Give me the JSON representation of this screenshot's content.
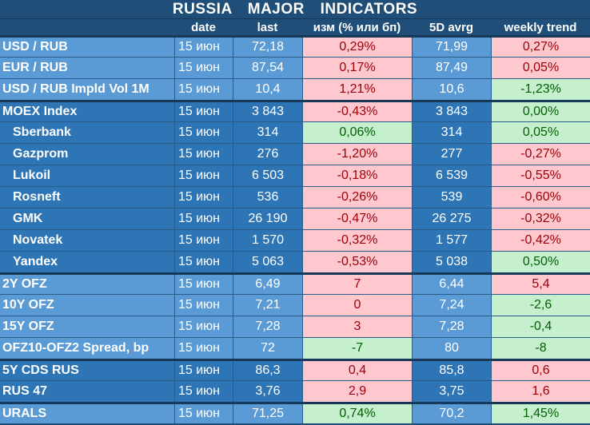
{
  "title": "RUSSIA   MAJOR   INDICATORS",
  "columns": {
    "name": "",
    "date": "date",
    "last": "last",
    "change": "изм (% или бп)",
    "avg": "5D avrg",
    "trend": "weekly trend"
  },
  "rows": [
    {
      "name": "USD / RUB",
      "date": "15 июн",
      "last": "72,18",
      "change": "0,29%",
      "change_sign": "neg",
      "avg": "71,99",
      "trend": "0,27%",
      "trend_sign": "neg"
    },
    {
      "name": "EUR / RUB",
      "date": "15 июн",
      "last": "87,54",
      "change": "0,17%",
      "change_sign": "neg",
      "avg": "87,49",
      "trend": "0,05%",
      "trend_sign": "neg"
    },
    {
      "name": "USD / RUB Impld Vol 1M",
      "date": "15 июн",
      "last": "10,4",
      "change": "1,21%",
      "change_sign": "neg",
      "avg": "10,6",
      "trend": "-1,23%",
      "trend_sign": "pos"
    },
    {
      "name": "MOEX Index",
      "date": "15 июн",
      "last": "3 843",
      "change": "-0,43%",
      "change_sign": "neg",
      "avg": "3 843",
      "trend": "0,00%",
      "trend_sign": "pos"
    },
    {
      "name": "Sberbank",
      "date": "15 июн",
      "last": "314",
      "change": "0,06%",
      "change_sign": "pos",
      "avg": "314",
      "trend": "0,05%",
      "trend_sign": "pos"
    },
    {
      "name": "Gazprom",
      "date": "15 июн",
      "last": "276",
      "change": "-1,20%",
      "change_sign": "neg",
      "avg": "277",
      "trend": "-0,27%",
      "trend_sign": "neg"
    },
    {
      "name": "Lukoil",
      "date": "15 июн",
      "last": "6 503",
      "change": "-0,18%",
      "change_sign": "neg",
      "avg": "6 539",
      "trend": "-0,55%",
      "trend_sign": "neg"
    },
    {
      "name": "Rosneft",
      "date": "15 июн",
      "last": "536",
      "change": "-0,26%",
      "change_sign": "neg",
      "avg": "539",
      "trend": "-0,60%",
      "trend_sign": "neg"
    },
    {
      "name": "GMK",
      "date": "15 июн",
      "last": "26 190",
      "change": "-0,47%",
      "change_sign": "neg",
      "avg": "26 275",
      "trend": "-0,32%",
      "trend_sign": "neg"
    },
    {
      "name": "Novatek",
      "date": "15 июн",
      "last": "1 570",
      "change": "-0,32%",
      "change_sign": "neg",
      "avg": "1 577",
      "trend": "-0,42%",
      "trend_sign": "neg"
    },
    {
      "name": "Yandex",
      "date": "15 июн",
      "last": "5 063",
      "change": "-0,53%",
      "change_sign": "neg",
      "avg": "5 038",
      "trend": "0,50%",
      "trend_sign": "pos"
    },
    {
      "name": "2Y OFZ",
      "date": "15 июн",
      "last": "6,49",
      "change": "7",
      "change_sign": "neg",
      "avg": "6,44",
      "trend": "5,4",
      "trend_sign": "neg"
    },
    {
      "name": "10Y OFZ",
      "date": "15 июн",
      "last": "7,21",
      "change": "0",
      "change_sign": "neg",
      "avg": "7,24",
      "trend": "-2,6",
      "trend_sign": "pos"
    },
    {
      "name": "15Y OFZ",
      "date": "15 июн",
      "last": "7,28",
      "change": "3",
      "change_sign": "neg",
      "avg": "7,28",
      "trend": "-0,4",
      "trend_sign": "pos"
    },
    {
      "name": "OFZ10-OFZ2 Spread, bp",
      "date": "15 июн",
      "last": "72",
      "change": "-7",
      "change_sign": "pos",
      "avg": "80",
      "trend": "-8",
      "trend_sign": "pos"
    },
    {
      "name": "5Y CDS RUS",
      "date": "15 июн",
      "last": "86,3",
      "change": "0,4",
      "change_sign": "neg",
      "avg": "85,8",
      "trend": "0,6",
      "trend_sign": "neg"
    },
    {
      "name": "RUS 47",
      "date": "15 июн",
      "last": "3,76",
      "change": "2,9",
      "change_sign": "neg",
      "avg": "3,75",
      "trend": "1,6",
      "trend_sign": "neg"
    },
    {
      "name": "URALS",
      "date": "15 июн",
      "last": "71,25",
      "change": "0,74%",
      "change_sign": "pos",
      "avg": "70,2",
      "trend": "1,45%",
      "trend_sign": "pos"
    }
  ],
  "colors": {
    "header_bg": "#1f4e79",
    "cell_light": "#5b9bd5",
    "cell_dark": "#2e75b6",
    "neg_bg": "#ffc7ce",
    "neg_text": "#9c0006",
    "pos_bg": "#c6efce",
    "pos_text": "#006100"
  }
}
